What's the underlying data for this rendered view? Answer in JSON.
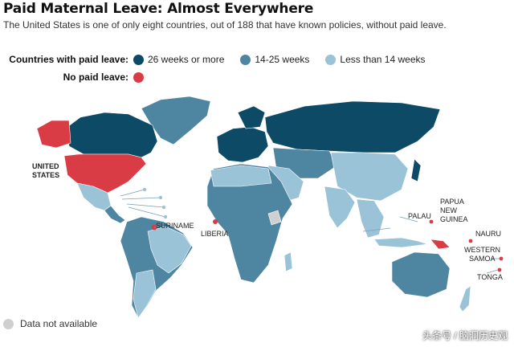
{
  "title": "Paid Maternal Leave: Almost Everywhere",
  "subtitle": "The United States is one of only eight countries, out of 188 that have known policies, without paid leave.",
  "legend": {
    "paid_label": "Countries with paid leave:",
    "items": [
      {
        "text": "26 weeks or more",
        "color": "#0d4a66"
      },
      {
        "text": "14-25 weeks",
        "color": "#4e86a2"
      },
      {
        "text": "Less than 14 weeks",
        "color": "#9ac3d8"
      }
    ],
    "unpaid_label": "No paid leave:",
    "unpaid_color": "#d93c44"
  },
  "map_labels": {
    "united": "UNITED",
    "states": "STATES",
    "suriname": "SURINAME",
    "liberia": "LIBERIA",
    "papua": "PAPUA",
    "new": "NEW",
    "guinea": "GUINEA",
    "palau": "PALAU",
    "nauru": "NAURU",
    "western": "WESTERN",
    "samoa": "SAMOA",
    "tonga": "TONGA"
  },
  "not_available": {
    "text": "Data not available",
    "color": "#cfcfcf"
  },
  "watermark": "头条号 / 脑洞历史观"
}
